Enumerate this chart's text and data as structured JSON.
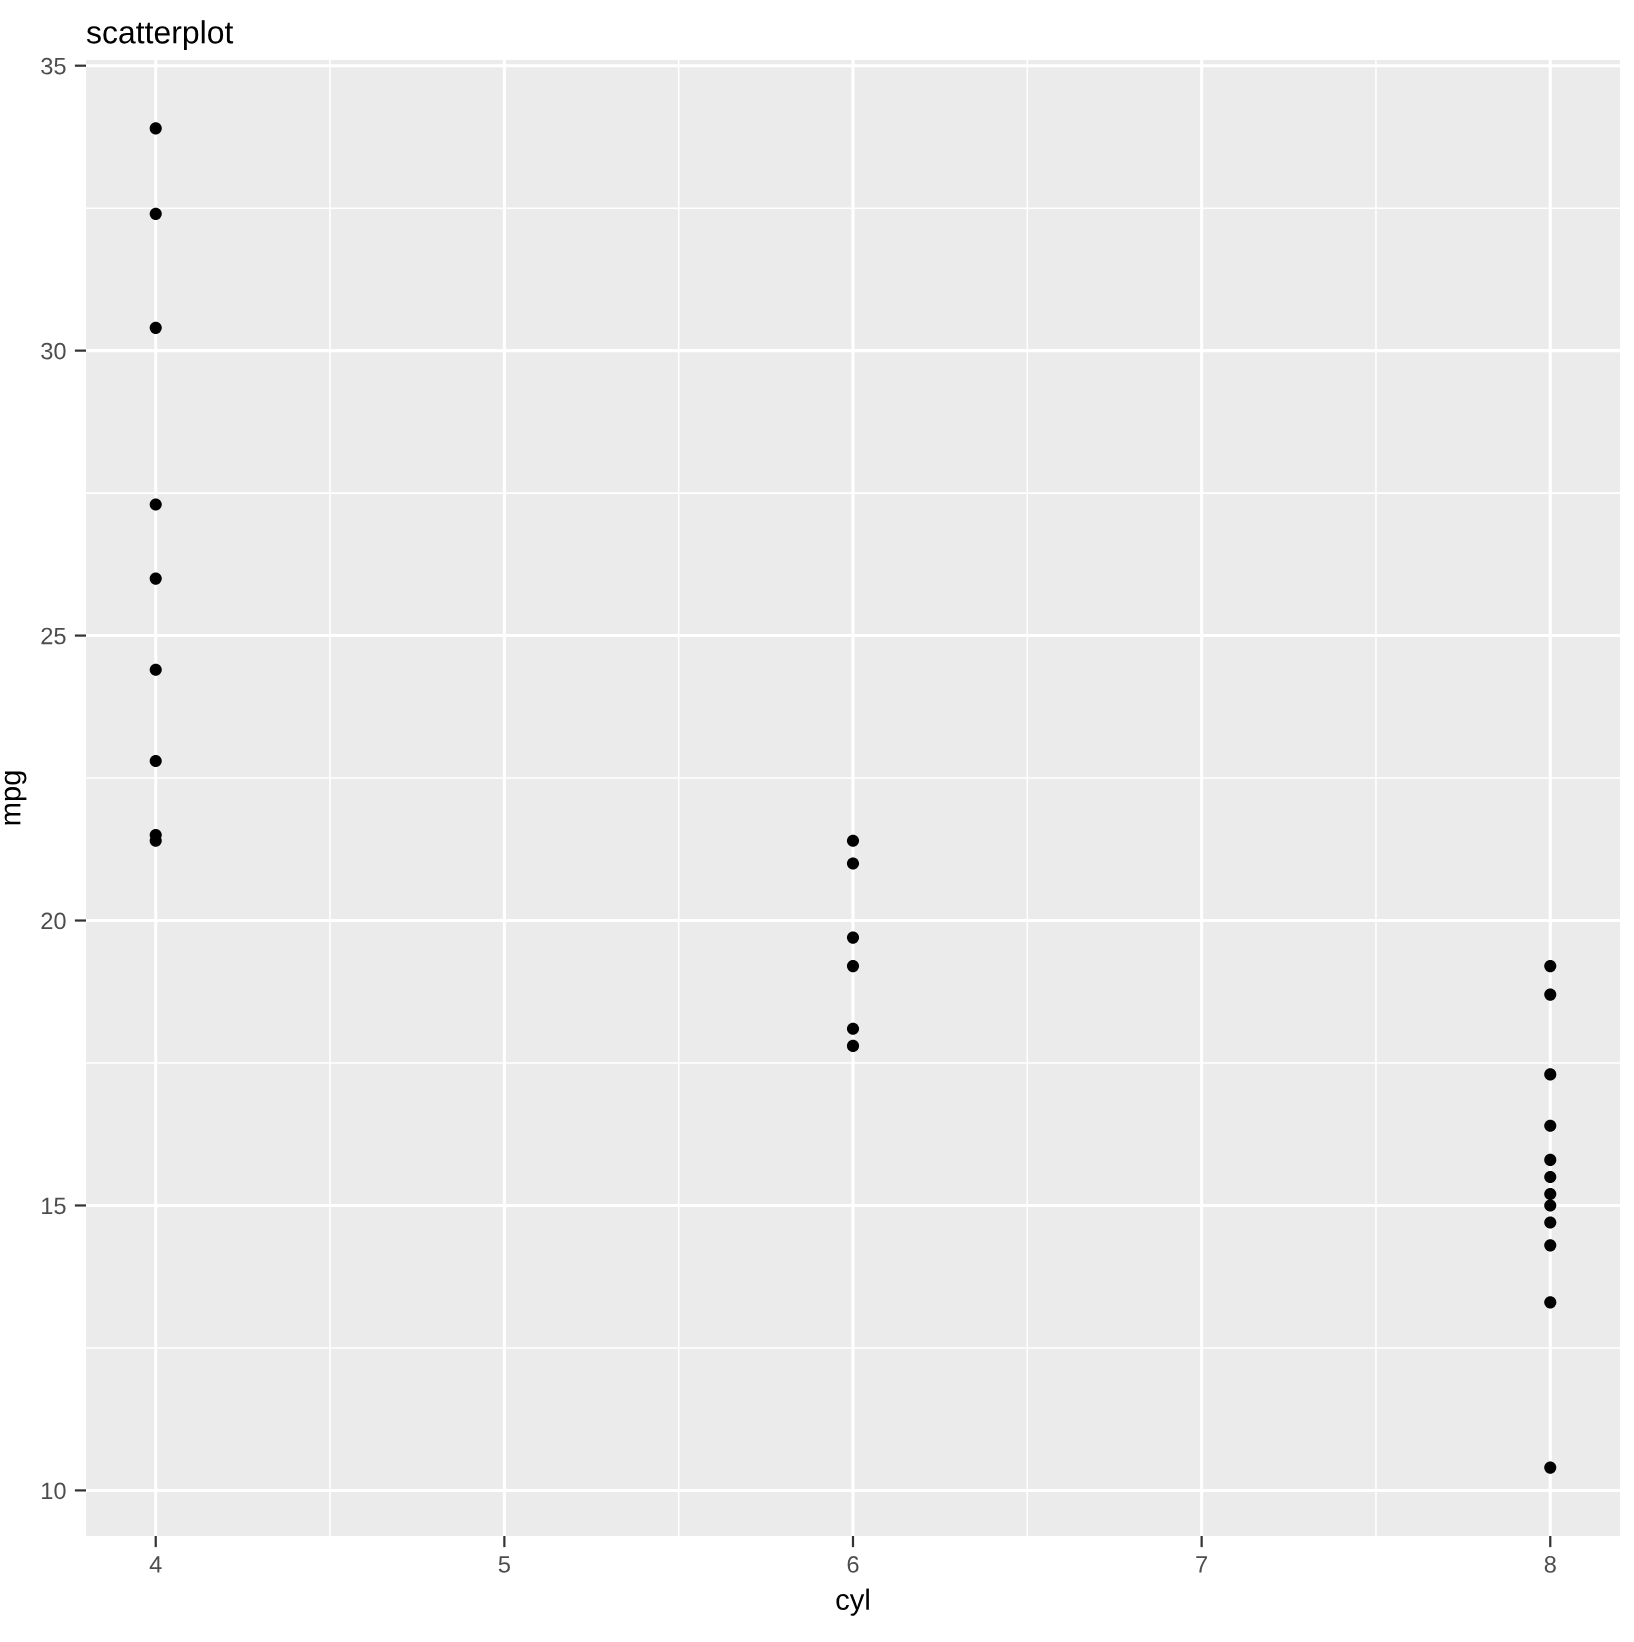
{
  "chart_data": {
    "type": "scatter",
    "title": "scatterplot",
    "xlabel": "cyl",
    "ylabel": "mpg",
    "x": [
      4,
      4,
      4,
      4,
      4,
      4,
      4,
      4,
      4,
      6,
      6,
      6,
      6,
      6,
      6,
      8,
      8,
      8,
      8,
      8,
      8,
      8,
      8,
      8,
      8,
      8,
      8
    ],
    "series": [
      {
        "color": "#000000",
        "values": [
          33.9,
          32.4,
          30.4,
          27.3,
          26.0,
          24.4,
          22.8,
          21.5,
          21.4,
          21.4,
          21.0,
          19.7,
          19.2,
          18.1,
          17.8,
          19.2,
          18.7,
          17.3,
          16.4,
          15.8,
          15.5,
          15.2,
          15.0,
          14.7,
          14.3,
          13.3,
          10.4
        ]
      }
    ],
    "xlim": [
      3.8,
      8.2
    ],
    "ylim": [
      9.2,
      35.1
    ],
    "xticks": [
      4,
      5,
      6,
      7,
      8
    ],
    "yticks": [
      10,
      15,
      20,
      25,
      30,
      35
    ],
    "grid": true,
    "marker": "circle"
  }
}
